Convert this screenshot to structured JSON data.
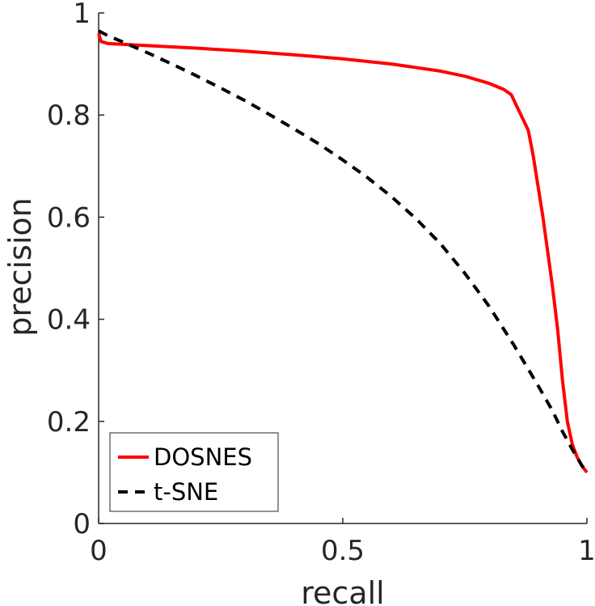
{
  "chart_data": {
    "type": "line",
    "xlabel": "recall",
    "ylabel": "precision",
    "xlim": [
      0,
      1
    ],
    "ylim": [
      0,
      1
    ],
    "x_ticks": [
      0,
      0.5,
      1
    ],
    "x_tick_labels": [
      "0",
      "0.5",
      "1"
    ],
    "y_ticks": [
      0,
      0.2,
      0.4,
      0.6,
      0.8,
      1
    ],
    "y_tick_labels": [
      "0",
      "0.2",
      "0.4",
      "0.6",
      "0.8",
      "1"
    ],
    "grid": false,
    "legend_position": "bottom-left",
    "series": [
      {
        "name": "DOSNES",
        "color": "#ff0000",
        "dash": "solid",
        "x": [
          0,
          0.005,
          0.02,
          0.1,
          0.2,
          0.3,
          0.4,
          0.5,
          0.6,
          0.7,
          0.75,
          0.8,
          0.83,
          0.845,
          0.855,
          0.865,
          0.88,
          0.89,
          0.9,
          0.91,
          0.92,
          0.93,
          0.94,
          0.95,
          0.96,
          0.97,
          0.98,
          0.99,
          1.0
        ],
        "y": [
          0.96,
          0.944,
          0.94,
          0.936,
          0.931,
          0.925,
          0.918,
          0.91,
          0.9,
          0.886,
          0.876,
          0.862,
          0.85,
          0.84,
          0.82,
          0.8,
          0.77,
          0.72,
          0.66,
          0.6,
          0.53,
          0.46,
          0.38,
          0.28,
          0.2,
          0.155,
          0.13,
          0.112,
          0.1
        ]
      },
      {
        "name": "t-SNE",
        "color": "#000000",
        "dash": "dashed",
        "x": [
          0,
          0.02,
          0.05,
          0.1,
          0.15,
          0.2,
          0.25,
          0.3,
          0.35,
          0.4,
          0.45,
          0.5,
          0.55,
          0.6,
          0.65,
          0.7,
          0.75,
          0.8,
          0.85,
          0.9,
          0.93,
          0.95,
          0.97,
          0.99,
          1.0
        ],
        "y": [
          0.965,
          0.955,
          0.943,
          0.922,
          0.9,
          0.877,
          0.853,
          0.828,
          0.801,
          0.773,
          0.744,
          0.712,
          0.678,
          0.64,
          0.597,
          0.548,
          0.49,
          0.425,
          0.35,
          0.27,
          0.22,
          0.18,
          0.145,
          0.113,
          0.1
        ]
      }
    ]
  }
}
